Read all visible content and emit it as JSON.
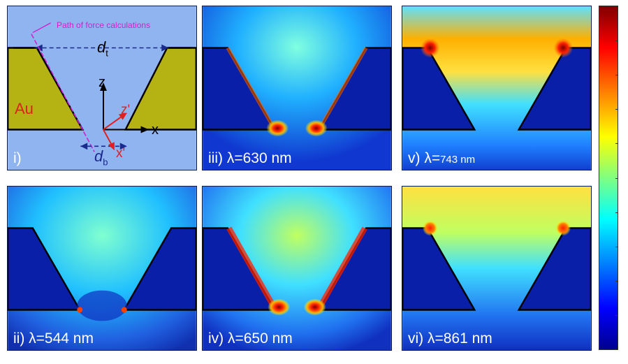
{
  "schematic": {
    "path_label": "Path of force calculations",
    "dt_label": "d",
    "dt_sub": "t",
    "db_label": "d",
    "db_sub": "b",
    "material": "Au",
    "axis_z": "z",
    "axis_x": "x",
    "axis_z_prime": "z'",
    "axis_x_prime": "x'",
    "panel_label": "i)"
  },
  "panels": [
    {
      "id": "ii",
      "label": "ii) λ=544 nm",
      "pattern": "bottom-gap"
    },
    {
      "id": "iii",
      "label": "iii) λ=630 nm",
      "pattern": "walls-and-gap"
    },
    {
      "id": "iv",
      "label": "iv) λ=650 nm",
      "pattern": "walls-strong"
    },
    {
      "id": "v",
      "label_prefix": "v) λ=",
      "label_value": "743 nm",
      "pattern": "top-corners"
    },
    {
      "id": "vi",
      "label": "vi) λ=861 nm",
      "pattern": "top-weak"
    }
  ],
  "colors": {
    "background_field": "#0a1fa8",
    "gold": "#b5b214",
    "sky": "#8fb4f0",
    "path": "#d020d0",
    "arrow_dark": "#1a2a8a",
    "arrow_red": "#e02020"
  },
  "colorbar": {
    "colormap": "jet",
    "orientation": "vertical"
  }
}
